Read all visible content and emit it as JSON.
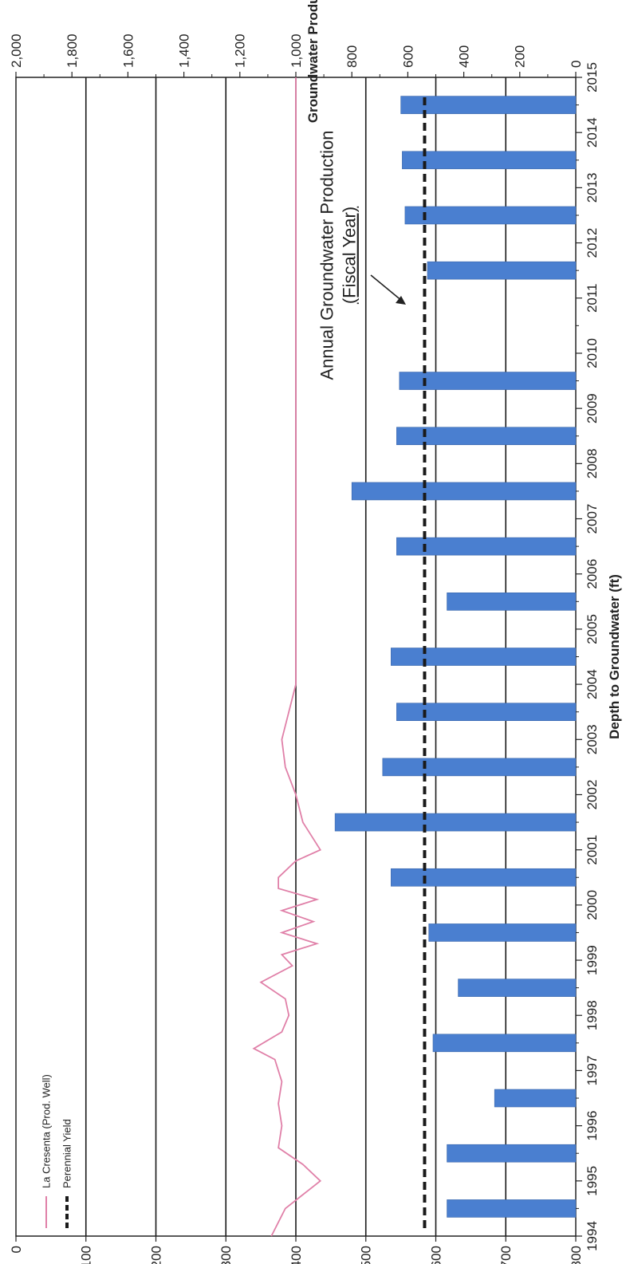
{
  "chart_data": {
    "type": "bar",
    "title": "",
    "xlabel": "",
    "years": [
      "1994",
      "1995",
      "1996",
      "1997",
      "1998",
      "1999",
      "2000",
      "2001",
      "2002",
      "2003",
      "2004",
      "2005",
      "2006",
      "2007",
      "2008",
      "2009",
      "2010",
      "2011",
      "2012",
      "2013",
      "2014",
      "2015"
    ],
    "left_axis": {
      "label": "Depth to Groundwater (ft)",
      "range": [
        0,
        800
      ],
      "ticks": [
        "0",
        "100",
        "200",
        "300",
        "400",
        "500",
        "600",
        "700",
        "800"
      ]
    },
    "right_axis": {
      "label": "Groundwater Production (acre-ft)",
      "range": [
        0,
        2000
      ],
      "ticks": [
        "0",
        "200",
        "400",
        "600",
        "800",
        "1,000",
        "1,200",
        "1,400",
        "1,600",
        "1,800",
        "2,000"
      ]
    },
    "series": [
      {
        "name": "Annual Groundwater Production (Fiscal Year)",
        "axis": "right",
        "type": "bar",
        "color": "#4a7fd0",
        "x": [
          1994.5,
          1995.5,
          1996.5,
          1997.5,
          1998.5,
          1999.5,
          2000.5,
          2001.5,
          2002.5,
          2003.5,
          2004.5,
          2005.5,
          2006.5,
          2007.5,
          2008.5,
          2009.5,
          2010.5,
          2011.5,
          2012.5,
          2013.5,
          2014.5
        ],
        "values": [
          460,
          460,
          290,
          510,
          420,
          525,
          660,
          860,
          690,
          640,
          660,
          460,
          640,
          800,
          640,
          630,
          0,
          530,
          610,
          620,
          625
        ]
      },
      {
        "name": "La Cresenta (Prod. Well)",
        "axis": "left",
        "type": "line",
        "color": "#e080a8",
        "x": [
          1994.0,
          1994.5,
          1995.0,
          1995.3,
          1995.6,
          1996.0,
          1996.4,
          1996.8,
          1997.2,
          1997.4,
          1997.7,
          1998.0,
          1998.3,
          1998.6,
          1998.9,
          1999.1,
          1999.3,
          1999.5,
          1999.7,
          1999.9,
          2000.1,
          2000.3,
          2000.5,
          2000.8,
          2001.0,
          2001.5,
          2002.0,
          2002.5,
          2003.0,
          2003.5,
          2004.0,
          2005.0,
          2006.0,
          2007.0,
          2008.0,
          2009.0,
          2010.0,
          2011.0,
          2012.0,
          2013.0,
          2014.0,
          2015.0
        ],
        "y": [
          365,
          385,
          435,
          410,
          375,
          380,
          375,
          380,
          370,
          340,
          380,
          390,
          385,
          350,
          395,
          380,
          430,
          380,
          425,
          380,
          430,
          375,
          375,
          400,
          435,
          410,
          400,
          385,
          380,
          390,
          400,
          400,
          400,
          400,
          400,
          400,
          400,
          400,
          400,
          400,
          400,
          400
        ]
      },
      {
        "name": "Perennial Yield",
        "axis": "right",
        "type": "line",
        "style": "dashed",
        "color": "#1a1a1a",
        "value": 540
      }
    ],
    "legend": {
      "placement": "top-left",
      "entries": [
        "La Cresenta (Prod. Well)",
        "Perennial Yield"
      ]
    },
    "annotation": {
      "line1": "Annual Groundwater Production",
      "line2": "(Fiscal Year)"
    },
    "grid": true,
    "orientation": "rotated-90"
  }
}
